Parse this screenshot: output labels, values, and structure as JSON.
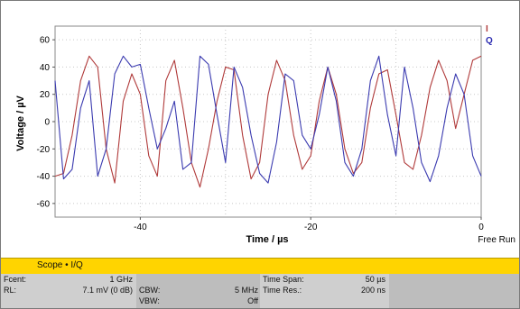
{
  "chart_data": {
    "type": "line",
    "xlabel": "Time / µs",
    "ylabel": "Voltage / µV",
    "xlim": [
      -50,
      0
    ],
    "ylim": [
      -70,
      70
    ],
    "x_ticks": [
      -40,
      -20,
      0
    ],
    "y_ticks": [
      60,
      40,
      20,
      0,
      -20,
      -40,
      -60
    ],
    "grid": true,
    "legend": [
      "I",
      "Q"
    ],
    "series": [
      {
        "name": "I",
        "color": "#b03a3a",
        "x": [
          -50,
          -49,
          -48,
          -47,
          -46,
          -45,
          -44,
          -43,
          -42,
          -41,
          -40,
          -39,
          -38,
          -37,
          -36,
          -35,
          -34,
          -33,
          -32,
          -31,
          -30,
          -29,
          -28,
          -27,
          -26,
          -25,
          -24,
          -23,
          -22,
          -21,
          -20,
          -19,
          -18,
          -17,
          -16,
          -15,
          -14,
          -13,
          -12,
          -11,
          -10,
          -9,
          -8,
          -7,
          -6,
          -5,
          -4,
          -3,
          -2,
          -1,
          0
        ],
        "y": [
          -40,
          -38,
          -10,
          30,
          48,
          40,
          -20,
          -45,
          15,
          35,
          20,
          -25,
          -40,
          30,
          45,
          10,
          -30,
          -48,
          -20,
          15,
          40,
          38,
          -10,
          -42,
          -30,
          20,
          45,
          30,
          -10,
          -35,
          -25,
          15,
          40,
          20,
          -20,
          -38,
          -30,
          10,
          35,
          38,
          5,
          -30,
          -35,
          -10,
          25,
          45,
          30,
          -5,
          20,
          45,
          48
        ]
      },
      {
        "name": "Q",
        "color": "#3b3bb0",
        "x": [
          -50,
          -49,
          -48,
          -47,
          -46,
          -45,
          -44,
          -43,
          -42,
          -41,
          -40,
          -39,
          -38,
          -37,
          -36,
          -35,
          -34,
          -33,
          -32,
          -31,
          -30,
          -29,
          -28,
          -27,
          -26,
          -25,
          -24,
          -23,
          -22,
          -21,
          -20,
          -19,
          -18,
          -17,
          -16,
          -15,
          -14,
          -13,
          -12,
          -11,
          -10,
          -9,
          -8,
          -7,
          -6,
          -5,
          -4,
          -3,
          -2,
          -1,
          0
        ],
        "y": [
          30,
          -42,
          -35,
          10,
          30,
          -40,
          -20,
          35,
          48,
          40,
          42,
          10,
          -20,
          -5,
          15,
          -35,
          -30,
          48,
          42,
          5,
          -30,
          40,
          25,
          -10,
          -38,
          -45,
          -15,
          35,
          30,
          -10,
          -20,
          5,
          40,
          15,
          -30,
          -40,
          -20,
          30,
          48,
          5,
          -25,
          40,
          10,
          -30,
          -44,
          -25,
          10,
          35,
          20,
          -25,
          -40
        ]
      }
    ]
  },
  "plot": {
    "xlabel": "Time / µs",
    "ylabel": "Voltage / µV",
    "free_run": "Free Run",
    "legend_i": "I",
    "legend_q": "Q",
    "x_ticks": [
      "-40",
      "-20",
      "0"
    ],
    "y_ticks": [
      "60",
      "40",
      "20",
      "0",
      "-20",
      "-40",
      "-60"
    ]
  },
  "mode_bar": {
    "label": "Scope • I/Q"
  },
  "info": {
    "fcent_label": "Fcent:",
    "fcent_value": "1 GHz",
    "rl_label": "RL:",
    "rl_value": "7.1 mV (0 dB)",
    "cbw_label": "CBW:",
    "cbw_value": "5 MHz",
    "vbw_label": "VBW:",
    "vbw_value": "Off",
    "timespan_label": "Time Span:",
    "timespan_value": "50 µs",
    "timeres_label": "Time Res.:",
    "timeres_value": "200 ns"
  }
}
